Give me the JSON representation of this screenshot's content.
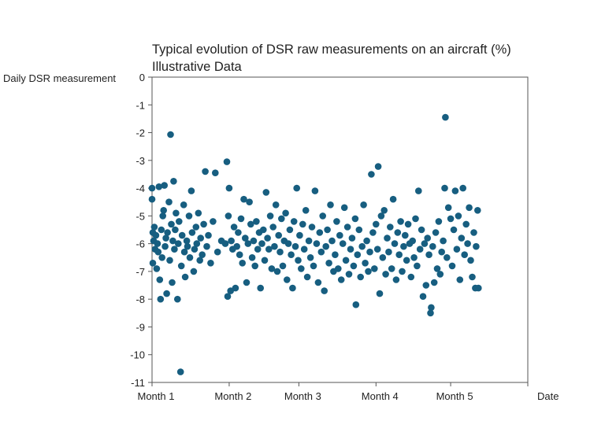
{
  "chart_data": {
    "type": "scatter",
    "title": "Typical evolution of DSR raw measurements on an aircraft (%)",
    "subtitle": "Illustrative Data",
    "ylabel": "Daily DSR measurement",
    "xlabel": "Date",
    "ylim": [
      -11,
      0
    ],
    "yticks": [
      0,
      -1,
      -2,
      -3,
      -4,
      -5,
      -6,
      -7,
      -8,
      -9,
      -10,
      -11
    ],
    "xticks": [
      "Month 1",
      "Month 2",
      "Month 3",
      "Month 4",
      "Month 5"
    ],
    "x_note_units": "month (1.0 = start of Month 1)",
    "grid": false,
    "legend": "none",
    "marker_color": "#175e80",
    "points": [
      [
        1.0,
        -4.0
      ],
      [
        1.0,
        -4.4
      ],
      [
        1.01,
        -5.6
      ],
      [
        1.01,
        -6.7
      ],
      [
        1.02,
        -5.9
      ],
      [
        1.03,
        -5.4
      ],
      [
        1.04,
        -6.2
      ],
      [
        1.05,
        -5.7
      ],
      [
        1.06,
        -6.9
      ],
      [
        1.07,
        -6.0
      ],
      [
        1.08,
        -6.3
      ],
      [
        1.09,
        -3.95
      ],
      [
        1.1,
        -7.3
      ],
      [
        1.11,
        -8.0
      ],
      [
        1.12,
        -5.5
      ],
      [
        1.13,
        -6.5
      ],
      [
        1.14,
        -5.0
      ],
      [
        1.15,
        -4.8
      ],
      [
        1.16,
        -3.9
      ],
      [
        1.17,
        -6.1
      ],
      [
        1.18,
        -5.8
      ],
      [
        1.19,
        -7.8
      ],
      [
        1.2,
        -5.6
      ],
      [
        1.22,
        -4.5
      ],
      [
        1.23,
        -6.6
      ],
      [
        1.24,
        -2.07
      ],
      [
        1.25,
        -5.3
      ],
      [
        1.26,
        -7.4
      ],
      [
        1.27,
        -5.9
      ],
      [
        1.28,
        -3.75
      ],
      [
        1.29,
        -6.2
      ],
      [
        1.3,
        -5.5
      ],
      [
        1.31,
        -4.9
      ],
      [
        1.33,
        -8.0
      ],
      [
        1.34,
        -6.0
      ],
      [
        1.35,
        -5.2
      ],
      [
        1.37,
        -10.62
      ],
      [
        1.38,
        -6.8
      ],
      [
        1.39,
        -5.7
      ],
      [
        1.41,
        -4.6
      ],
      [
        1.42,
        -6.3
      ],
      [
        1.43,
        -7.2
      ],
      [
        1.45,
        -5.9
      ],
      [
        1.46,
        -6.1
      ],
      [
        1.48,
        -5.0
      ],
      [
        1.49,
        -6.5
      ],
      [
        1.51,
        -4.1
      ],
      [
        1.52,
        -5.6
      ],
      [
        1.54,
        -7.0
      ],
      [
        1.55,
        -6.2
      ],
      [
        1.57,
        -5.4
      ],
      [
        1.58,
        -6.0
      ],
      [
        1.6,
        -4.9
      ],
      [
        1.62,
        -6.6
      ],
      [
        1.63,
        -5.8
      ],
      [
        1.65,
        -6.4
      ],
      [
        1.67,
        -5.3
      ],
      [
        1.69,
        -3.4
      ],
      [
        1.71,
        -6.1
      ],
      [
        1.73,
        -5.7
      ],
      [
        1.76,
        -6.7
      ],
      [
        1.79,
        -5.2
      ],
      [
        1.82,
        -3.45
      ],
      [
        1.85,
        -6.3
      ],
      [
        1.9,
        -5.9
      ],
      [
        1.95,
        -6.0
      ],
      [
        1.97,
        -3.05
      ],
      [
        1.98,
        -7.9
      ],
      [
        1.99,
        -5.0
      ],
      [
        2.0,
        -4.0
      ],
      [
        2.02,
        -7.7
      ],
      [
        2.03,
        -5.9
      ],
      [
        2.05,
        -6.2
      ],
      [
        2.07,
        -5.4
      ],
      [
        2.09,
        -7.6
      ],
      [
        2.11,
        -6.1
      ],
      [
        2.13,
        -5.6
      ],
      [
        2.15,
        -6.4
      ],
      [
        2.17,
        -5.1
      ],
      [
        2.19,
        -6.7
      ],
      [
        2.21,
        -4.4
      ],
      [
        2.23,
        -5.8
      ],
      [
        2.25,
        -7.4
      ],
      [
        2.27,
        -6.0
      ],
      [
        2.29,
        -4.5
      ],
      [
        2.31,
        -5.3
      ],
      [
        2.33,
        -6.5
      ],
      [
        2.35,
        -5.9
      ],
      [
        2.37,
        -6.8
      ],
      [
        2.39,
        -5.2
      ],
      [
        2.41,
        -6.2
      ],
      [
        2.43,
        -5.6
      ],
      [
        2.45,
        -7.6
      ],
      [
        2.47,
        -6.0
      ],
      [
        2.49,
        -5.5
      ],
      [
        2.51,
        -6.6
      ],
      [
        2.53,
        -4.15
      ],
      [
        2.55,
        -5.8
      ],
      [
        2.57,
        -6.2
      ],
      [
        2.59,
        -5.0
      ],
      [
        2.61,
        -6.9
      ],
      [
        2.63,
        -5.4
      ],
      [
        2.65,
        -6.1
      ],
      [
        2.67,
        -4.6
      ],
      [
        2.69,
        -7.0
      ],
      [
        2.71,
        -5.7
      ],
      [
        2.73,
        -6.3
      ],
      [
        2.75,
        -5.1
      ],
      [
        2.77,
        -6.8
      ],
      [
        2.79,
        -5.9
      ],
      [
        2.81,
        -4.9
      ],
      [
        2.83,
        -7.3
      ],
      [
        2.85,
        -6.0
      ],
      [
        2.87,
        -5.5
      ],
      [
        2.89,
        -6.4
      ],
      [
        2.91,
        -7.6
      ],
      [
        2.93,
        -5.2
      ],
      [
        2.95,
        -6.1
      ],
      [
        2.97,
        -4.0
      ],
      [
        2.99,
        -6.6
      ],
      [
        3.01,
        -5.7
      ],
      [
        3.03,
        -6.9
      ],
      [
        3.05,
        -5.3
      ],
      [
        3.07,
        -6.2
      ],
      [
        3.09,
        -4.8
      ],
      [
        3.11,
        -7.2
      ],
      [
        3.13,
        -5.9
      ],
      [
        3.15,
        -6.5
      ],
      [
        3.17,
        -5.4
      ],
      [
        3.19,
        -6.8
      ],
      [
        3.21,
        -4.1
      ],
      [
        3.23,
        -6.0
      ],
      [
        3.25,
        -7.4
      ],
      [
        3.27,
        -5.6
      ],
      [
        3.29,
        -6.3
      ],
      [
        3.31,
        -5.0
      ],
      [
        3.33,
        -7.7
      ],
      [
        3.35,
        -6.1
      ],
      [
        3.37,
        -5.5
      ],
      [
        3.39,
        -6.7
      ],
      [
        3.41,
        -4.6
      ],
      [
        3.43,
        -5.9
      ],
      [
        3.45,
        -7.0
      ],
      [
        3.47,
        -6.4
      ],
      [
        3.49,
        -5.2
      ],
      [
        3.51,
        -6.9
      ],
      [
        3.53,
        -5.7
      ],
      [
        3.55,
        -7.3
      ],
      [
        3.57,
        -6.0
      ],
      [
        3.59,
        -4.7
      ],
      [
        3.61,
        -6.6
      ],
      [
        3.63,
        -5.4
      ],
      [
        3.65,
        -7.1
      ],
      [
        3.67,
        -6.2
      ],
      [
        3.69,
        -5.8
      ],
      [
        3.71,
        -6.8
      ],
      [
        3.73,
        -5.1
      ],
      [
        3.74,
        -8.2
      ],
      [
        3.76,
        -6.4
      ],
      [
        3.78,
        -5.5
      ],
      [
        3.8,
        -7.2
      ],
      [
        3.82,
        -6.1
      ],
      [
        3.84,
        -4.6
      ],
      [
        3.86,
        -6.7
      ],
      [
        3.88,
        -5.9
      ],
      [
        3.9,
        -7.0
      ],
      [
        3.92,
        -6.3
      ],
      [
        3.94,
        -3.5
      ],
      [
        3.96,
        -5.6
      ],
      [
        3.98,
        -6.9
      ],
      [
        4.0,
        -5.3
      ],
      [
        4.02,
        -6.2
      ],
      [
        4.03,
        -3.22
      ],
      [
        4.05,
        -7.8
      ],
      [
        4.07,
        -5.0
      ],
      [
        4.09,
        -6.5
      ],
      [
        4.11,
        -4.8
      ],
      [
        4.13,
        -7.1
      ],
      [
        4.15,
        -5.8
      ],
      [
        4.17,
        -6.3
      ],
      [
        4.19,
        -5.4
      ],
      [
        4.21,
        -6.9
      ],
      [
        4.23,
        -4.4
      ],
      [
        4.25,
        -6.0
      ],
      [
        4.27,
        -7.3
      ],
      [
        4.29,
        -5.6
      ],
      [
        4.31,
        -6.4
      ],
      [
        4.33,
        -5.2
      ],
      [
        4.35,
        -7.0
      ],
      [
        4.37,
        -6.1
      ],
      [
        4.39,
        -5.7
      ],
      [
        4.41,
        -6.6
      ],
      [
        4.43,
        -5.3
      ],
      [
        4.45,
        -6.0
      ],
      [
        4.47,
        -7.2
      ],
      [
        4.49,
        -5.9
      ],
      [
        4.51,
        -6.5
      ],
      [
        4.53,
        -5.1
      ],
      [
        4.55,
        -6.8
      ],
      [
        4.57,
        -4.1
      ],
      [
        4.59,
        -6.2
      ],
      [
        4.61,
        -5.5
      ],
      [
        4.63,
        -7.9
      ],
      [
        4.65,
        -6.0
      ],
      [
        4.67,
        -7.5
      ],
      [
        4.69,
        -5.8
      ],
      [
        4.71,
        -6.4
      ],
      [
        4.73,
        -8.5
      ],
      [
        4.74,
        -8.3
      ],
      [
        4.76,
        -6.1
      ],
      [
        4.78,
        -7.4
      ],
      [
        4.8,
        -5.6
      ],
      [
        4.82,
        -6.9
      ],
      [
        4.84,
        -5.2
      ],
      [
        4.86,
        -7.1
      ],
      [
        4.88,
        -6.3
      ],
      [
        4.9,
        -5.9
      ],
      [
        4.92,
        -4.0
      ],
      [
        4.93,
        -1.45
      ],
      [
        4.95,
        -6.5
      ],
      [
        4.97,
        -4.7
      ],
      [
        5.0,
        -5.1
      ],
      [
        5.02,
        -6.8
      ],
      [
        5.04,
        -5.5
      ],
      [
        5.06,
        -4.1
      ],
      [
        5.08,
        -6.2
      ],
      [
        5.1,
        -5.0
      ],
      [
        5.12,
        -7.3
      ],
      [
        5.14,
        -5.8
      ],
      [
        5.16,
        -4.0
      ],
      [
        5.18,
        -6.4
      ],
      [
        5.2,
        -5.3
      ],
      [
        5.22,
        -6.0
      ],
      [
        5.24,
        -4.7
      ],
      [
        5.26,
        -6.6
      ],
      [
        5.28,
        -7.2
      ],
      [
        5.3,
        -5.6
      ],
      [
        5.32,
        -7.6
      ],
      [
        5.33,
        -6.1
      ],
      [
        5.35,
        -4.8
      ],
      [
        5.36,
        -7.6
      ]
    ]
  }
}
